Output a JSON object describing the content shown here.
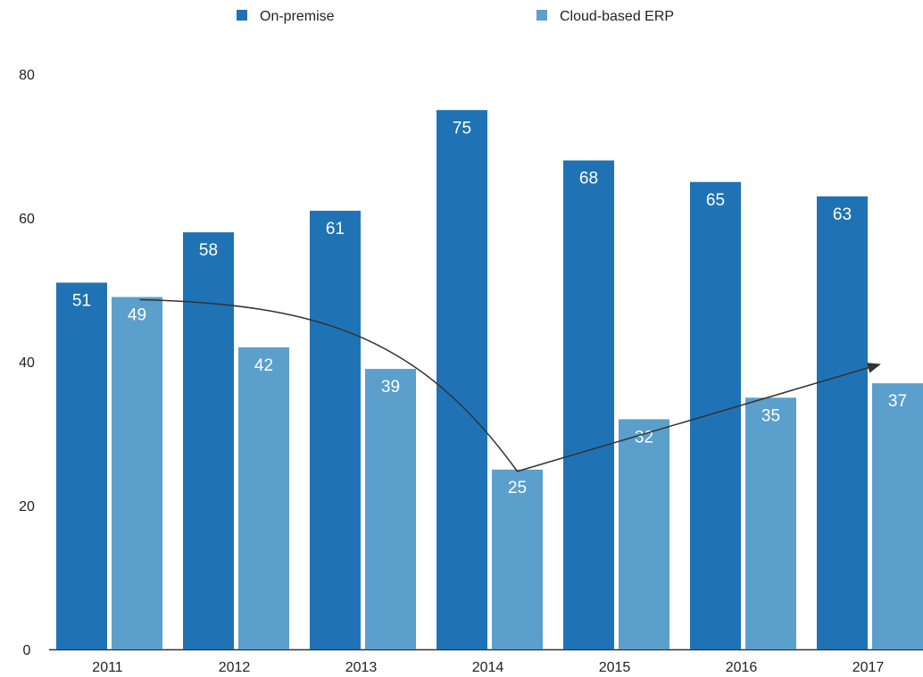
{
  "chart_data": {
    "type": "bar",
    "categories": [
      "2011",
      "2012",
      "2013",
      "2014",
      "2015",
      "2016",
      "2017"
    ],
    "series": [
      {
        "name": "On-premise",
        "values": [
          51,
          58,
          61,
          75,
          68,
          65,
          63
        ],
        "color": "#1f73b5"
      },
      {
        "name": "Cloud-based ERP",
        "values": [
          49,
          42,
          39,
          25,
          32,
          35,
          37
        ],
        "color": "#5b9fcc"
      }
    ],
    "ylim": [
      0,
      80
    ],
    "yticks": [
      "0",
      "20",
      "40",
      "60",
      "80"
    ],
    "grid": false,
    "legend": "top-center",
    "annotations": [
      {
        "type": "arrow",
        "from": [
          "2011",
          49
        ],
        "to": [
          "2014",
          25
        ],
        "description": "curved arrow from 2011 cloud value down to 2014"
      },
      {
        "type": "arrow",
        "from": [
          "2014",
          25
        ],
        "to": [
          "2017",
          40
        ],
        "description": "arrow rising from 2014 toward 2017"
      }
    ]
  }
}
